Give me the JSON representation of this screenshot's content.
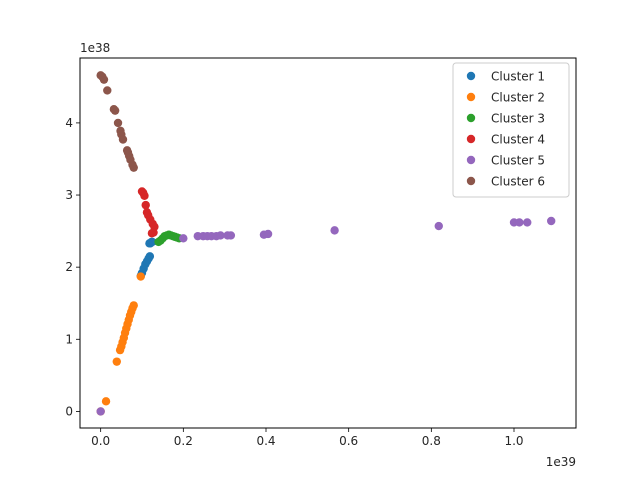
{
  "chart_data": {
    "type": "scatter",
    "title": "",
    "xlabel": "",
    "ylabel": "",
    "x_offset_label": "1e39",
    "y_offset_label": "1e38",
    "xlim": [
      -0.05,
      1.15
    ],
    "ylim": [
      -0.23,
      4.9
    ],
    "x_ticks": [
      0.0,
      0.2,
      0.4,
      0.6,
      0.8,
      1.0
    ],
    "x_tick_labels": [
      "0.0",
      "0.2",
      "0.4",
      "0.6",
      "0.8",
      "1.0"
    ],
    "y_ticks": [
      0,
      1,
      2,
      3,
      4
    ],
    "y_tick_labels": [
      "0",
      "1",
      "2",
      "3",
      "4"
    ],
    "grid": false,
    "legend_position": "top-right",
    "series": [
      {
        "name": "Cluster 1",
        "color": "#1f77b4",
        "points": [
          [
            0.097,
            1.88
          ],
          [
            0.1,
            1.92
          ],
          [
            0.104,
            1.98
          ],
          [
            0.108,
            2.04
          ],
          [
            0.112,
            2.08
          ],
          [
            0.116,
            2.12
          ],
          [
            0.119,
            2.15
          ],
          [
            0.118,
            2.33
          ],
          [
            0.12,
            2.33
          ],
          [
            0.123,
            2.35
          ],
          [
            0.125,
            2.35
          ]
        ]
      },
      {
        "name": "Cluster 2",
        "color": "#ff7f0e",
        "points": [
          [
            0.0,
            0.0
          ],
          [
            0.013,
            0.14
          ],
          [
            0.039,
            0.69
          ],
          [
            0.047,
            0.85
          ],
          [
            0.05,
            0.9
          ],
          [
            0.053,
            0.96
          ],
          [
            0.056,
            1.02
          ],
          [
            0.059,
            1.09
          ],
          [
            0.062,
            1.15
          ],
          [
            0.065,
            1.21
          ],
          [
            0.068,
            1.27
          ],
          [
            0.071,
            1.33
          ],
          [
            0.074,
            1.38
          ],
          [
            0.077,
            1.43
          ],
          [
            0.08,
            1.47
          ],
          [
            0.097,
            1.87
          ]
        ]
      },
      {
        "name": "Cluster 3",
        "color": "#2ca02c",
        "points": [
          [
            0.14,
            2.35
          ],
          [
            0.145,
            2.37
          ],
          [
            0.15,
            2.4
          ],
          [
            0.155,
            2.43
          ],
          [
            0.16,
            2.44
          ],
          [
            0.165,
            2.45
          ],
          [
            0.17,
            2.44
          ],
          [
            0.175,
            2.43
          ],
          [
            0.18,
            2.42
          ],
          [
            0.185,
            2.41
          ],
          [
            0.19,
            2.4
          ]
        ]
      },
      {
        "name": "Cluster 4",
        "color": "#d62728",
        "points": [
          [
            0.1,
            3.05
          ],
          [
            0.103,
            3.03
          ],
          [
            0.106,
            2.99
          ],
          [
            0.109,
            2.86
          ],
          [
            0.112,
            2.76
          ],
          [
            0.115,
            2.72
          ],
          [
            0.12,
            2.66
          ],
          [
            0.126,
            2.6
          ],
          [
            0.13,
            2.56
          ],
          [
            0.128,
            2.48
          ],
          [
            0.124,
            2.47
          ]
        ]
      },
      {
        "name": "Cluster 5",
        "color": "#9467bd",
        "points": [
          [
            0.0,
            0.0
          ],
          [
            0.2,
            2.4
          ],
          [
            0.235,
            2.43
          ],
          [
            0.248,
            2.43
          ],
          [
            0.258,
            2.43
          ],
          [
            0.268,
            2.43
          ],
          [
            0.28,
            2.43
          ],
          [
            0.29,
            2.44
          ],
          [
            0.307,
            2.44
          ],
          [
            0.315,
            2.44
          ],
          [
            0.395,
            2.45
          ],
          [
            0.405,
            2.46
          ],
          [
            0.566,
            2.51
          ],
          [
            0.818,
            2.57
          ],
          [
            1.0,
            2.62
          ],
          [
            1.013,
            2.62
          ],
          [
            1.032,
            2.62
          ],
          [
            1.09,
            2.64
          ]
        ]
      },
      {
        "name": "Cluster 6",
        "color": "#8c564b",
        "points": [
          [
            0.0,
            4.66
          ],
          [
            0.004,
            4.64
          ],
          [
            0.008,
            4.6
          ],
          [
            0.016,
            4.45
          ],
          [
            0.032,
            4.19
          ],
          [
            0.035,
            4.17
          ],
          [
            0.042,
            4.0
          ],
          [
            0.048,
            3.89
          ],
          [
            0.05,
            3.84
          ],
          [
            0.054,
            3.77
          ],
          [
            0.064,
            3.62
          ],
          [
            0.066,
            3.59
          ],
          [
            0.069,
            3.54
          ],
          [
            0.072,
            3.49
          ],
          [
            0.077,
            3.42
          ],
          [
            0.08,
            3.38
          ]
        ]
      }
    ]
  }
}
